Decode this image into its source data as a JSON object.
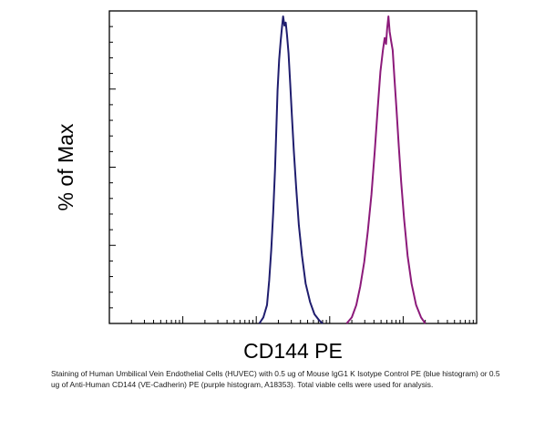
{
  "chart_data": {
    "type": "area",
    "title": "",
    "xlabel": "CD144 PE",
    "ylabel": "% of Max",
    "x_scale": "log",
    "xlim": [
      1,
      100000
    ],
    "ylim": [
      0,
      100
    ],
    "grid": false,
    "legend": "none",
    "x_tick_labels_shown": false,
    "y_tick_labels_shown": false,
    "series": [
      {
        "color": "#1f1d6e",
        "points": [
          [
            110,
            0
          ],
          [
            125,
            2
          ],
          [
            140,
            6
          ],
          [
            150,
            14
          ],
          [
            160,
            24
          ],
          [
            170,
            36
          ],
          [
            180,
            50
          ],
          [
            188,
            64
          ],
          [
            195,
            76
          ],
          [
            205,
            86
          ],
          [
            215,
            92
          ],
          [
            225,
            97
          ],
          [
            232,
            100
          ],
          [
            242,
            97
          ],
          [
            252,
            98
          ],
          [
            262,
            94
          ],
          [
            275,
            88
          ],
          [
            290,
            78
          ],
          [
            305,
            68
          ],
          [
            325,
            56
          ],
          [
            350,
            44
          ],
          [
            380,
            32
          ],
          [
            420,
            22
          ],
          [
            470,
            13
          ],
          [
            540,
            7
          ],
          [
            620,
            3
          ],
          [
            720,
            1
          ],
          [
            800,
            0
          ]
        ]
      },
      {
        "color": "#8c1a7a",
        "points": [
          [
            1700,
            0
          ],
          [
            2000,
            2
          ],
          [
            2300,
            6
          ],
          [
            2600,
            12
          ],
          [
            2950,
            20
          ],
          [
            3300,
            30
          ],
          [
            3700,
            42
          ],
          [
            4100,
            56
          ],
          [
            4500,
            70
          ],
          [
            4900,
            82
          ],
          [
            5300,
            89
          ],
          [
            5600,
            93
          ],
          [
            5850,
            91
          ],
          [
            6050,
            96
          ],
          [
            6300,
            100
          ],
          [
            6550,
            95
          ],
          [
            6850,
            92
          ],
          [
            7200,
            89
          ],
          [
            7600,
            80
          ],
          [
            8100,
            70
          ],
          [
            8700,
            58
          ],
          [
            9400,
            46
          ],
          [
            10300,
            34
          ],
          [
            11500,
            22
          ],
          [
            13000,
            13
          ],
          [
            15000,
            6
          ],
          [
            17500,
            2
          ],
          [
            20000,
            0
          ]
        ]
      }
    ]
  },
  "caption": "Staining of Human Umbilical Vein Endothelial Cells (HUVEC) with 0.5 ug of Mouse IgG1 K Isotype Control PE (blue histogram) or 0.5 ug of Anti-Human CD144 (VE-Cadherin) PE (purple histogram, A18353). Total viable cells were used for analysis."
}
